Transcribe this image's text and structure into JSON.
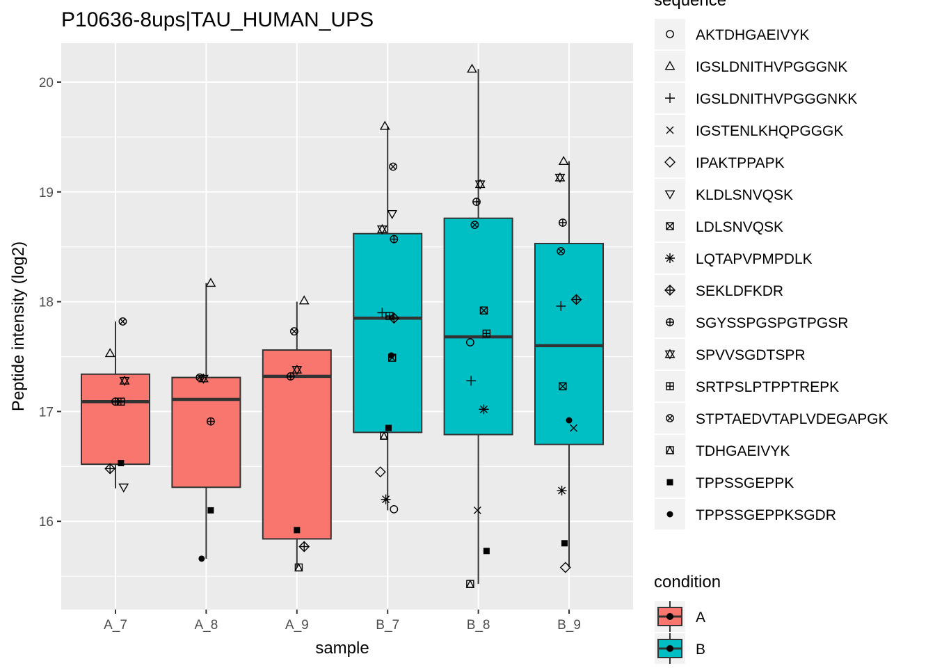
{
  "chart_data": {
    "type": "box",
    "title": "P10636-8ups|TAU_HUMAN_UPS",
    "xlabel": "sample",
    "ylabel": "Peptide intensity (log2)",
    "ylim": [
      15.2,
      20.4
    ],
    "yticks": [
      16,
      17,
      18,
      19,
      20
    ],
    "categories": [
      "A_7",
      "A_8",
      "A_9",
      "B_7",
      "B_8",
      "B_9"
    ],
    "grid": true,
    "condition_legend": {
      "title": "condition",
      "items": [
        {
          "label": "A",
          "color": "#F8766D"
        },
        {
          "label": "B",
          "color": "#00BFC4"
        }
      ]
    },
    "sequence_legend": {
      "title": "sequence",
      "items": [
        {
          "label": "AKTDHGAEIVYK",
          "shape": "circle-open"
        },
        {
          "label": "IGSLDNITHVPGGGNK",
          "shape": "triangle-up-open"
        },
        {
          "label": "IGSLDNITHVPGGGNKK",
          "shape": "plus"
        },
        {
          "label": "IGSTENLKHQPGGGK",
          "shape": "cross"
        },
        {
          "label": "IPAKTPPAPK",
          "shape": "diamond-open"
        },
        {
          "label": "KLDLSNVQSK",
          "shape": "triangle-down-open"
        },
        {
          "label": "LDLSNVQSK",
          "shape": "square-cross"
        },
        {
          "label": "LQTAPVPMPDLK",
          "shape": "asterisk"
        },
        {
          "label": "SEKLDFKDR",
          "shape": "diamond-plus"
        },
        {
          "label": "SGYSSPGSPGTPGSR",
          "shape": "circle-plus"
        },
        {
          "label": "SPVVSGDTSPR",
          "shape": "star-of-david"
        },
        {
          "label": "SRTPSLPTPPTREPK",
          "shape": "square-plus"
        },
        {
          "label": "STPTAEDVTAPLVDEGAPGK",
          "shape": "circle-cross"
        },
        {
          "label": "TDHGAEIVYK",
          "shape": "square-triangle"
        },
        {
          "label": "TPPSSGEPPK",
          "shape": "square-filled"
        },
        {
          "label": "TPPSSGEPPKSGDR",
          "shape": "circle-filled"
        }
      ]
    },
    "boxes": [
      {
        "sample": "A_7",
        "condition": "A",
        "lower_whisker": 16.3,
        "q1": 16.52,
        "median": 17.09,
        "q3": 17.34,
        "upper_whisker": 17.82
      },
      {
        "sample": "A_8",
        "condition": "A",
        "lower_whisker": 15.66,
        "q1": 16.31,
        "median": 17.11,
        "q3": 17.31,
        "upper_whisker": 18.17
      },
      {
        "sample": "A_9",
        "condition": "A",
        "lower_whisker": 15.58,
        "q1": 15.84,
        "median": 17.32,
        "q3": 17.56,
        "upper_whisker": 18.0
      },
      {
        "sample": "B_7",
        "condition": "B",
        "lower_whisker": 16.1,
        "q1": 16.81,
        "median": 17.85,
        "q3": 18.62,
        "upper_whisker": 19.6
      },
      {
        "sample": "B_8",
        "condition": "B",
        "lower_whisker": 15.43,
        "q1": 16.79,
        "median": 17.68,
        "q3": 18.76,
        "upper_whisker": 20.12
      },
      {
        "sample": "B_9",
        "condition": "B",
        "lower_whisker": 15.58,
        "q1": 16.7,
        "median": 17.6,
        "q3": 18.53,
        "upper_whisker": 19.28
      }
    ],
    "points": [
      {
        "sample": "A_7",
        "sequence": "IGSLDNITHVPGGGNK",
        "x_jitter": -0.06,
        "y": 17.53
      },
      {
        "sample": "A_7",
        "sequence": "KLDLSNVQSK",
        "x_jitter": 0.09,
        "y": 16.31
      },
      {
        "sample": "A_7",
        "sequence": "SEKLDFKDR",
        "x_jitter": -0.06,
        "y": 16.48
      },
      {
        "sample": "A_7",
        "sequence": "SGYSSPGSPGTPGSR",
        "x_jitter": 0.0,
        "y": 17.09
      },
      {
        "sample": "A_7",
        "sequence": "SPVVSGDTSPR",
        "x_jitter": 0.1,
        "y": 17.28
      },
      {
        "sample": "A_7",
        "sequence": "SRTPSLPTPPTREPK",
        "x_jitter": 0.06,
        "y": 17.09
      },
      {
        "sample": "A_7",
        "sequence": "STPTAEDVTAPLVDEGAPGK",
        "x_jitter": 0.08,
        "y": 17.82
      },
      {
        "sample": "A_7",
        "sequence": "TPPSSGEPPK",
        "x_jitter": 0.06,
        "y": 16.53
      },
      {
        "sample": "A_8",
        "sequence": "IGSLDNITHVPGGGNK",
        "x_jitter": 0.05,
        "y": 18.17
      },
      {
        "sample": "A_8",
        "sequence": "SGYSSPGSPGTPGSR",
        "x_jitter": 0.05,
        "y": 16.91
      },
      {
        "sample": "A_8",
        "sequence": "SPVVSGDTSPR",
        "x_jitter": -0.03,
        "y": 17.3
      },
      {
        "sample": "A_8",
        "sequence": "STPTAEDVTAPLVDEGAPGK",
        "x_jitter": -0.07,
        "y": 17.31
      },
      {
        "sample": "A_8",
        "sequence": "TPPSSGEPPK",
        "x_jitter": 0.05,
        "y": 16.1
      },
      {
        "sample": "A_8",
        "sequence": "TPPSSGEPPKSGDR",
        "x_jitter": -0.05,
        "y": 15.66
      },
      {
        "sample": "A_9",
        "sequence": "IGSLDNITHVPGGGNK",
        "x_jitter": 0.08,
        "y": 18.01
      },
      {
        "sample": "A_9",
        "sequence": "SEKLDFKDR",
        "x_jitter": 0.08,
        "y": 15.77
      },
      {
        "sample": "A_9",
        "sequence": "SGYSSPGSPGTPGSR",
        "x_jitter": -0.07,
        "y": 17.32
      },
      {
        "sample": "A_9",
        "sequence": "SPVVSGDTSPR",
        "x_jitter": 0.0,
        "y": 17.38
      },
      {
        "sample": "A_9",
        "sequence": "STPTAEDVTAPLVDEGAPGK",
        "x_jitter": -0.03,
        "y": 17.73
      },
      {
        "sample": "A_9",
        "sequence": "TDHGAEIVYK",
        "x_jitter": 0.02,
        "y": 15.58
      },
      {
        "sample": "A_9",
        "sequence": "TPPSSGEPPK",
        "x_jitter": 0.0,
        "y": 15.92
      },
      {
        "sample": "B_7",
        "sequence": "AKTDHGAEIVYK",
        "x_jitter": 0.07,
        "y": 16.11
      },
      {
        "sample": "B_7",
        "sequence": "IGSLDNITHVPGGGNK",
        "x_jitter": -0.03,
        "y": 19.6
      },
      {
        "sample": "B_7",
        "sequence": "IGSLDNITHVPGGGNKK",
        "x_jitter": -0.06,
        "y": 17.9
      },
      {
        "sample": "B_7",
        "sequence": "IPAKTPPAPK",
        "x_jitter": -0.08,
        "y": 16.45
      },
      {
        "sample": "B_7",
        "sequence": "KLDLSNVQSK",
        "x_jitter": 0.05,
        "y": 18.8
      },
      {
        "sample": "B_7",
        "sequence": "LDLSNVQSK",
        "x_jitter": 0.05,
        "y": 17.49
      },
      {
        "sample": "B_7",
        "sequence": "LQTAPVPMPDLK",
        "x_jitter": -0.02,
        "y": 16.2
      },
      {
        "sample": "B_7",
        "sequence": "SEKLDFKDR",
        "x_jitter": 0.07,
        "y": 17.85
      },
      {
        "sample": "B_7",
        "sequence": "SGYSSPGSPGTPGSR",
        "x_jitter": 0.07,
        "y": 18.57
      },
      {
        "sample": "B_7",
        "sequence": "SPVVSGDTSPR",
        "x_jitter": -0.06,
        "y": 18.66
      },
      {
        "sample": "B_7",
        "sequence": "SRTPSLPTPPTREPK",
        "x_jitter": 0.02,
        "y": 17.87
      },
      {
        "sample": "B_7",
        "sequence": "STPTAEDVTAPLVDEGAPGK",
        "x_jitter": 0.06,
        "y": 19.23
      },
      {
        "sample": "B_7",
        "sequence": "TDHGAEIVYK",
        "x_jitter": -0.04,
        "y": 16.78
      },
      {
        "sample": "B_7",
        "sequence": "TPPSSGEPPK",
        "x_jitter": 0.01,
        "y": 16.85
      },
      {
        "sample": "B_7",
        "sequence": "TPPSSGEPPKSGDR",
        "x_jitter": 0.04,
        "y": 17.51
      },
      {
        "sample": "B_8",
        "sequence": "AKTDHGAEIVYK",
        "x_jitter": -0.09,
        "y": 17.63
      },
      {
        "sample": "B_8",
        "sequence": "IGSLDNITHVPGGGNK",
        "x_jitter": -0.07,
        "y": 20.12
      },
      {
        "sample": "B_8",
        "sequence": "IGSLDNITHVPGGGNKK",
        "x_jitter": -0.08,
        "y": 17.28
      },
      {
        "sample": "B_8",
        "sequence": "IGSTENLKHQPGGGK",
        "x_jitter": -0.01,
        "y": 16.1
      },
      {
        "sample": "B_8",
        "sequence": "LDLSNVQSK",
        "x_jitter": 0.06,
        "y": 17.92
      },
      {
        "sample": "B_8",
        "sequence": "LQTAPVPMPDLK",
        "x_jitter": 0.06,
        "y": 17.02
      },
      {
        "sample": "B_8",
        "sequence": "SGYSSPGSPGTPGSR",
        "x_jitter": -0.02,
        "y": 18.91
      },
      {
        "sample": "B_8",
        "sequence": "SPVVSGDTSPR",
        "x_jitter": 0.02,
        "y": 19.07
      },
      {
        "sample": "B_8",
        "sequence": "SRTPSLPTPPTREPK",
        "x_jitter": 0.09,
        "y": 17.71
      },
      {
        "sample": "B_8",
        "sequence": "STPTAEDVTAPLVDEGAPGK",
        "x_jitter": -0.04,
        "y": 18.7
      },
      {
        "sample": "B_8",
        "sequence": "TDHGAEIVYK",
        "x_jitter": -0.09,
        "y": 15.43
      },
      {
        "sample": "B_8",
        "sequence": "TPPSSGEPPK",
        "x_jitter": 0.09,
        "y": 15.73
      },
      {
        "sample": "B_9",
        "sequence": "IGSLDNITHVPGGGNK",
        "x_jitter": -0.06,
        "y": 19.28
      },
      {
        "sample": "B_9",
        "sequence": "IGSLDNITHVPGGGNKK",
        "x_jitter": -0.09,
        "y": 17.96
      },
      {
        "sample": "B_9",
        "sequence": "IGSTENLKHQPGGGK",
        "x_jitter": 0.05,
        "y": 16.85
      },
      {
        "sample": "B_9",
        "sequence": "IPAKTPPAPK",
        "x_jitter": -0.04,
        "y": 15.58
      },
      {
        "sample": "B_9",
        "sequence": "LDLSNVQSK",
        "x_jitter": -0.07,
        "y": 17.23
      },
      {
        "sample": "B_9",
        "sequence": "LQTAPVPMPDLK",
        "x_jitter": -0.08,
        "y": 16.28
      },
      {
        "sample": "B_9",
        "sequence": "SEKLDFKDR",
        "x_jitter": 0.08,
        "y": 18.02
      },
      {
        "sample": "B_9",
        "sequence": "SGYSSPGSPGTPGSR",
        "x_jitter": -0.07,
        "y": 18.72
      },
      {
        "sample": "B_9",
        "sequence": "SPVVSGDTSPR",
        "x_jitter": -0.1,
        "y": 19.13
      },
      {
        "sample": "B_9",
        "sequence": "STPTAEDVTAPLVDEGAPGK",
        "x_jitter": -0.09,
        "y": 18.46
      },
      {
        "sample": "B_9",
        "sequence": "TPPSSGEPPK",
        "x_jitter": -0.05,
        "y": 15.8
      },
      {
        "sample": "B_9",
        "sequence": "TPPSSGEPPKSGDR",
        "x_jitter": 0.0,
        "y": 16.92
      }
    ]
  }
}
